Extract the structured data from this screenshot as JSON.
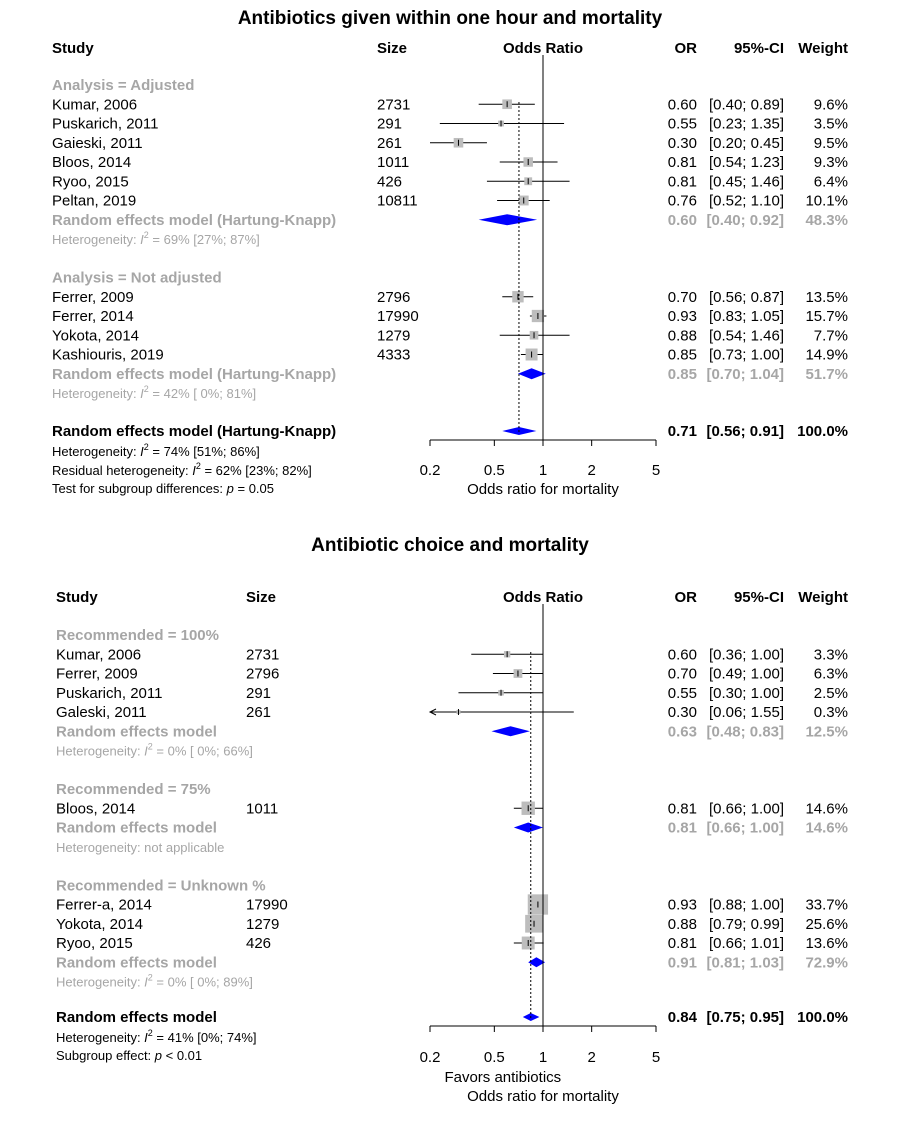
{
  "chart_data": [
    {
      "type": "forest",
      "title": "Antibiotics given within one hour and mortality",
      "columns": {
        "study": "Study",
        "size": "Size",
        "plot": "Odds Ratio",
        "or": "OR",
        "ci": "95%-CI",
        "weight": "Weight"
      },
      "xlabel": "Odds ratio for mortality",
      "xlabel_left": "",
      "x_scale": "log",
      "xlim": [
        0.2,
        5
      ],
      "ticks": [
        "0.2",
        "0.5",
        "1",
        "2",
        "5"
      ],
      "reference_line": 1,
      "pooled_or": 0.71,
      "subgroups": [
        {
          "label": "Analysis = Adjusted",
          "studies": [
            {
              "study": "Kumar, 2006",
              "size": "2731",
              "or": 0.6,
              "lo": 0.4,
              "hi": 0.89,
              "or_text": "0.60",
              "ci_text": "[0.40; 0.89]",
              "weight": 9.6,
              "weight_text": "9.6%"
            },
            {
              "study": "Puskarich, 2011",
              "size": "291",
              "or": 0.55,
              "lo": 0.23,
              "hi": 1.35,
              "or_text": "0.55",
              "ci_text": "[0.23; 1.35]",
              "weight": 3.5,
              "weight_text": "3.5%"
            },
            {
              "study": "Gaieski, 2011",
              "size": "261",
              "or": 0.3,
              "lo": 0.2,
              "hi": 0.45,
              "or_text": "0.30",
              "ci_text": "[0.20; 0.45]",
              "weight": 9.5,
              "weight_text": "9.5%"
            },
            {
              "study": "Bloos, 2014",
              "size": "1011",
              "or": 0.81,
              "lo": 0.54,
              "hi": 1.23,
              "or_text": "0.81",
              "ci_text": "[0.54; 1.23]",
              "weight": 9.3,
              "weight_text": "9.3%"
            },
            {
              "study": "Ryoo, 2015",
              "size": "426",
              "or": 0.81,
              "lo": 0.45,
              "hi": 1.46,
              "or_text": "0.81",
              "ci_text": "[0.45; 1.46]",
              "weight": 6.4,
              "weight_text": "6.4%"
            },
            {
              "study": "Peltan, 2019",
              "size": "10811",
              "or": 0.76,
              "lo": 0.52,
              "hi": 1.1,
              "or_text": "0.76",
              "ci_text": "[0.52; 1.10]",
              "weight": 10.1,
              "weight_text": "10.1%"
            }
          ],
          "model": {
            "label": "Random effects model  (Hartung-Knapp)",
            "or": 0.6,
            "lo": 0.4,
            "hi": 0.92,
            "or_text": "0.60",
            "ci_text": "[0.40; 0.92]",
            "weight_text": "48.3%"
          },
          "heterogeneity": {
            "prefix": "Heterogeneity: ",
            "i2": true,
            "suffix": " = 69% [27%; 87%]"
          }
        },
        {
          "label": "Analysis = Not adjusted",
          "studies": [
            {
              "study": "Ferrer, 2009",
              "size": "2796",
              "or": 0.7,
              "lo": 0.56,
              "hi": 0.87,
              "or_text": "0.70",
              "ci_text": "[0.56; 0.87]",
              "weight": 13.5,
              "weight_text": "13.5%"
            },
            {
              "study": "Ferrer, 2014",
              "size": "17990",
              "or": 0.93,
              "lo": 0.83,
              "hi": 1.05,
              "or_text": "0.93",
              "ci_text": "[0.83; 1.05]",
              "weight": 15.7,
              "weight_text": "15.7%"
            },
            {
              "study": "Yokota, 2014",
              "size": "1279",
              "or": 0.88,
              "lo": 0.54,
              "hi": 1.46,
              "or_text": "0.88",
              "ci_text": "[0.54; 1.46]",
              "weight": 7.7,
              "weight_text": "7.7%"
            },
            {
              "study": "Kashiouris, 2019",
              "size": "4333",
              "or": 0.85,
              "lo": 0.73,
              "hi": 1.0,
              "or_text": "0.85",
              "ci_text": "[0.73; 1.00]",
              "weight": 14.9,
              "weight_text": "14.9%"
            }
          ],
          "model": {
            "label": "Random effects model  (Hartung-Knapp)",
            "or": 0.85,
            "lo": 0.7,
            "hi": 1.04,
            "or_text": "0.85",
            "ci_text": "[0.70; 1.04]",
            "weight_text": "51.7%"
          },
          "heterogeneity": {
            "prefix": "Heterogeneity: ",
            "i2": true,
            "suffix": " = 42% [ 0%; 81%]"
          }
        }
      ],
      "overall": {
        "label": "Random effects model  (Hartung-Knapp)",
        "or": 0.71,
        "lo": 0.56,
        "hi": 0.91,
        "or_text": "0.71",
        "ci_text": "[0.56; 0.91]",
        "weight_text": "100.0%"
      },
      "footnotes": [
        {
          "prefix": "Heterogeneity: ",
          "i2": true,
          "suffix": " = 74% [51%; 86%]"
        },
        {
          "prefix": "Residual heterogeneity: ",
          "i2": true,
          "suffix": " = 62% [23%; 82%]"
        },
        {
          "prefix": "Test for subgroup differences:  ",
          "p": true,
          "suffix": " = 0.05"
        }
      ]
    },
    {
      "type": "forest",
      "title": "Antibiotic choice and mortality",
      "columns": {
        "study": "Study",
        "size": "Size",
        "plot": "Odds Ratio",
        "or": "OR",
        "ci": "95%-CI",
        "weight": "Weight"
      },
      "xlabel": "Odds ratio for mortality",
      "xlabel_left": "Favors antibiotics",
      "x_scale": "log",
      "xlim": [
        0.2,
        5
      ],
      "ticks": [
        "0.2",
        "0.5",
        "1",
        "2",
        "5"
      ],
      "reference_line": 1,
      "pooled_or": 0.84,
      "subgroups": [
        {
          "label": "Recommended = 100%",
          "studies": [
            {
              "study": "Kumar, 2006",
              "size": "2731",
              "or": 0.6,
              "lo": 0.36,
              "hi": 1.0,
              "or_text": "0.60",
              "ci_text": "[0.36; 1.00]",
              "weight": 3.3,
              "weight_text": "3.3%"
            },
            {
              "study": "Ferrer, 2009",
              "size": "2796",
              "or": 0.7,
              "lo": 0.49,
              "hi": 1.0,
              "or_text": "0.70",
              "ci_text": "[0.49; 1.00]",
              "weight": 6.3,
              "weight_text": "6.3%"
            },
            {
              "study": "Puskarich, 2011",
              "size": "291",
              "or": 0.55,
              "lo": 0.3,
              "hi": 1.0,
              "or_text": "0.55",
              "ci_text": "[0.30; 1.00]",
              "weight": 2.5,
              "weight_text": "2.5%"
            },
            {
              "study": "Galeski, 2011",
              "size": "261",
              "or": 0.3,
              "lo": 0.06,
              "hi": 1.55,
              "or_text": "0.30",
              "ci_text": "[0.06; 1.55]",
              "weight": 0.3,
              "weight_text": "0.3%"
            }
          ],
          "model": {
            "label": "Random effects model",
            "or": 0.63,
            "lo": 0.48,
            "hi": 0.83,
            "or_text": "0.63",
            "ci_text": "[0.48; 0.83]",
            "weight_text": "12.5%"
          },
          "heterogeneity": {
            "prefix": "Heterogeneity: ",
            "i2": true,
            "suffix": " = 0% [ 0%; 66%]"
          }
        },
        {
          "label": "Recommended = 75%",
          "studies": [
            {
              "study": "Bloos, 2014",
              "size": "1011",
              "or": 0.81,
              "lo": 0.66,
              "hi": 1.0,
              "or_text": "0.81",
              "ci_text": "[0.66; 1.00]",
              "weight": 14.6,
              "weight_text": "14.6%"
            }
          ],
          "model": {
            "label": "Random effects model",
            "or": 0.81,
            "lo": 0.66,
            "hi": 1.0,
            "or_text": "0.81",
            "ci_text": "[0.66; 1.00]",
            "weight_text": "14.6%"
          },
          "heterogeneity": {
            "prefix": "Heterogeneity: not applicable",
            "i2": false,
            "suffix": ""
          }
        },
        {
          "label": "Recommended = Unknown %",
          "studies": [
            {
              "study": "Ferrer-a, 2014",
              "size": "17990",
              "or": 0.93,
              "lo": 0.88,
              "hi": 1.0,
              "or_text": "0.93",
              "ci_text": "[0.88; 1.00]",
              "weight": 33.7,
              "weight_text": "33.7%"
            },
            {
              "study": "Yokota, 2014",
              "size": "1279",
              "or": 0.88,
              "lo": 0.79,
              "hi": 0.99,
              "or_text": "0.88",
              "ci_text": "[0.79; 0.99]",
              "weight": 25.6,
              "weight_text": "25.6%"
            },
            {
              "study": "Ryoo, 2015",
              "size": "426",
              "or": 0.81,
              "lo": 0.66,
              "hi": 1.01,
              "or_text": "0.81",
              "ci_text": "[0.66; 1.01]",
              "weight": 13.6,
              "weight_text": "13.6%"
            }
          ],
          "model": {
            "label": "Random effects model",
            "or": 0.91,
            "lo": 0.81,
            "hi": 1.03,
            "or_text": "0.91",
            "ci_text": "[0.81; 1.03]",
            "weight_text": "72.9%"
          },
          "heterogeneity": {
            "prefix": "Heterogeneity: ",
            "i2": true,
            "suffix": " = 0% [ 0%; 89%]"
          }
        }
      ],
      "overall": {
        "label": "Random effects model",
        "or": 0.84,
        "lo": 0.75,
        "hi": 0.95,
        "or_text": "0.84",
        "ci_text": "[0.75; 0.95]",
        "weight_text": "100.0%"
      },
      "footnotes": [
        {
          "prefix": "Heterogeneity: ",
          "i2": true,
          "suffix": " = 41% [0%; 74%]"
        },
        {
          "prefix": "Subgroup effect:  ",
          "p": true,
          "suffix": " < 0.01"
        }
      ]
    }
  ]
}
